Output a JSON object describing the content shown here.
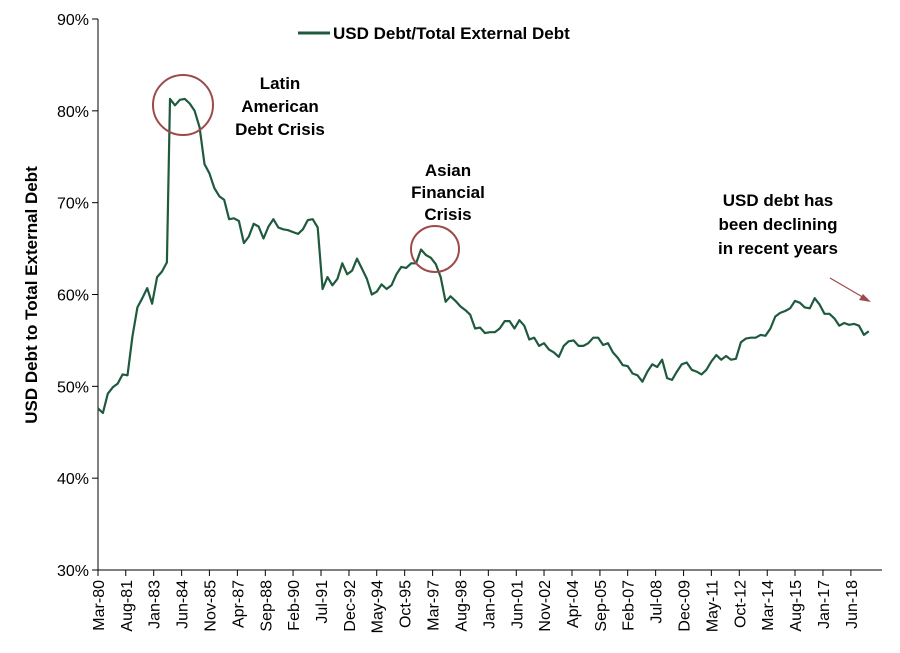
{
  "chart_data": {
    "type": "line",
    "title": "",
    "ylabel": "USD Debt to Total External Debt",
    "xlabel": "",
    "ylim": [
      30,
      90
    ],
    "y_ticks": [
      30,
      40,
      50,
      60,
      70,
      80,
      90
    ],
    "y_tick_labels": [
      "30%",
      "40%",
      "50%",
      "60%",
      "70%",
      "80%",
      "90%"
    ],
    "x_range": [
      1980.17,
      2020.0
    ],
    "x_ticks": [
      {
        "label": "Mar-80",
        "x": 1980.17
      },
      {
        "label": "Aug-81",
        "x": 1981.58
      },
      {
        "label": "Jan-83",
        "x": 1983.0
      },
      {
        "label": "Jun-84",
        "x": 1984.42
      },
      {
        "label": "Nov-85",
        "x": 1985.83
      },
      {
        "label": "Apr-87",
        "x": 1987.25
      },
      {
        "label": "Sep-88",
        "x": 1988.67
      },
      {
        "label": "Feb-90",
        "x": 1990.08
      },
      {
        "label": "Jul-91",
        "x": 1991.5
      },
      {
        "label": "Dec-92",
        "x": 1992.92
      },
      {
        "label": "May-94",
        "x": 1994.33
      },
      {
        "label": "Oct-95",
        "x": 1995.75
      },
      {
        "label": "Mar-97",
        "x": 1997.17
      },
      {
        "label": "Aug-98",
        "x": 1998.58
      },
      {
        "label": "Jan-00",
        "x": 2000.0
      },
      {
        "label": "Jun-01",
        "x": 2001.42
      },
      {
        "label": "Nov-02",
        "x": 2002.83
      },
      {
        "label": "Apr-04",
        "x": 2004.25
      },
      {
        "label": "Sep-05",
        "x": 2005.67
      },
      {
        "label": "Feb-07",
        "x": 2007.08
      },
      {
        "label": "Jul-08",
        "x": 2008.5
      },
      {
        "label": "Dec-09",
        "x": 2009.92
      },
      {
        "label": "May-11",
        "x": 2011.33
      },
      {
        "label": "Oct-12",
        "x": 2012.75
      },
      {
        "label": "Mar-14",
        "x": 2014.17
      },
      {
        "label": "Aug-15",
        "x": 2015.58
      },
      {
        "label": "Jan-17",
        "x": 2017.0
      },
      {
        "label": "Jun-18",
        "x": 2018.42
      }
    ],
    "grid": false,
    "legend_position": "top-center",
    "series": [
      {
        "name": "USD Debt/Total External Debt",
        "color": "#1f5a3e",
        "points": [
          [
            1980.17,
            47.6
          ],
          [
            1980.42,
            47.1
          ],
          [
            1980.67,
            49.2
          ],
          [
            1980.92,
            49.9
          ],
          [
            1981.17,
            50.3
          ],
          [
            1981.42,
            51.3
          ],
          [
            1981.67,
            51.2
          ],
          [
            1981.92,
            55.4
          ],
          [
            1982.17,
            58.6
          ],
          [
            1982.42,
            59.6
          ],
          [
            1982.67,
            60.7
          ],
          [
            1982.92,
            59.0
          ],
          [
            1983.17,
            61.9
          ],
          [
            1983.42,
            62.5
          ],
          [
            1983.67,
            63.5
          ],
          [
            1983.83,
            81.3
          ],
          [
            1984.08,
            80.6
          ],
          [
            1984.33,
            81.2
          ],
          [
            1984.58,
            81.3
          ],
          [
            1984.83,
            80.8
          ],
          [
            1985.08,
            80.0
          ],
          [
            1985.33,
            78.2
          ],
          [
            1985.58,
            74.2
          ],
          [
            1985.83,
            73.2
          ],
          [
            1986.08,
            71.6
          ],
          [
            1986.33,
            70.7
          ],
          [
            1986.58,
            70.3
          ],
          [
            1986.83,
            68.2
          ],
          [
            1987.08,
            68.3
          ],
          [
            1987.33,
            68.0
          ],
          [
            1987.58,
            65.6
          ],
          [
            1987.83,
            66.3
          ],
          [
            1988.08,
            67.7
          ],
          [
            1988.33,
            67.4
          ],
          [
            1988.58,
            66.1
          ],
          [
            1988.83,
            67.4
          ],
          [
            1989.08,
            68.2
          ],
          [
            1989.33,
            67.3
          ],
          [
            1989.58,
            67.1
          ],
          [
            1989.83,
            67.0
          ],
          [
            1990.08,
            66.8
          ],
          [
            1990.33,
            66.6
          ],
          [
            1990.58,
            67.1
          ],
          [
            1990.83,
            68.1
          ],
          [
            1991.08,
            68.2
          ],
          [
            1991.33,
            67.3
          ],
          [
            1991.58,
            60.6
          ],
          [
            1991.83,
            61.9
          ],
          [
            1992.08,
            61.0
          ],
          [
            1992.33,
            61.7
          ],
          [
            1992.58,
            63.4
          ],
          [
            1992.83,
            62.2
          ],
          [
            1993.08,
            62.6
          ],
          [
            1993.33,
            63.9
          ],
          [
            1993.58,
            62.8
          ],
          [
            1993.83,
            61.7
          ],
          [
            1994.08,
            60.0
          ],
          [
            1994.33,
            60.3
          ],
          [
            1994.58,
            61.1
          ],
          [
            1994.83,
            60.6
          ],
          [
            1995.08,
            61.0
          ],
          [
            1995.33,
            62.2
          ],
          [
            1995.58,
            63.0
          ],
          [
            1995.83,
            62.9
          ],
          [
            1996.08,
            63.4
          ],
          [
            1996.33,
            63.4
          ],
          [
            1996.58,
            64.9
          ],
          [
            1996.83,
            64.3
          ],
          [
            1997.08,
            64.0
          ],
          [
            1997.33,
            63.3
          ],
          [
            1997.58,
            61.9
          ],
          [
            1997.83,
            59.2
          ],
          [
            1998.08,
            59.8
          ],
          [
            1998.33,
            59.3
          ],
          [
            1998.58,
            58.7
          ],
          [
            1998.83,
            58.3
          ],
          [
            1999.08,
            57.8
          ],
          [
            1999.33,
            56.3
          ],
          [
            1999.58,
            56.4
          ],
          [
            1999.83,
            55.8
          ],
          [
            2000.08,
            55.9
          ],
          [
            2000.33,
            55.9
          ],
          [
            2000.58,
            56.3
          ],
          [
            2000.83,
            57.1
          ],
          [
            2001.08,
            57.1
          ],
          [
            2001.33,
            56.3
          ],
          [
            2001.58,
            57.2
          ],
          [
            2001.83,
            56.6
          ],
          [
            2002.08,
            55.1
          ],
          [
            2002.33,
            55.3
          ],
          [
            2002.58,
            54.4
          ],
          [
            2002.83,
            54.7
          ],
          [
            2003.08,
            54.0
          ],
          [
            2003.33,
            53.7
          ],
          [
            2003.58,
            53.2
          ],
          [
            2003.83,
            54.4
          ],
          [
            2004.08,
            54.9
          ],
          [
            2004.33,
            55.0
          ],
          [
            2004.58,
            54.4
          ],
          [
            2004.83,
            54.4
          ],
          [
            2005.08,
            54.7
          ],
          [
            2005.33,
            55.3
          ],
          [
            2005.58,
            55.3
          ],
          [
            2005.83,
            54.5
          ],
          [
            2006.08,
            54.7
          ],
          [
            2006.33,
            53.7
          ],
          [
            2006.58,
            53.1
          ],
          [
            2006.83,
            52.3
          ],
          [
            2007.08,
            52.2
          ],
          [
            2007.33,
            51.4
          ],
          [
            2007.58,
            51.2
          ],
          [
            2007.83,
            50.5
          ],
          [
            2008.08,
            51.6
          ],
          [
            2008.33,
            52.4
          ],
          [
            2008.58,
            52.1
          ],
          [
            2008.83,
            52.9
          ],
          [
            2009.08,
            50.9
          ],
          [
            2009.33,
            50.7
          ],
          [
            2009.58,
            51.6
          ],
          [
            2009.83,
            52.4
          ],
          [
            2010.08,
            52.6
          ],
          [
            2010.33,
            51.8
          ],
          [
            2010.58,
            51.6
          ],
          [
            2010.83,
            51.3
          ],
          [
            2011.08,
            51.8
          ],
          [
            2011.33,
            52.7
          ],
          [
            2011.58,
            53.4
          ],
          [
            2011.83,
            52.9
          ],
          [
            2012.08,
            53.3
          ],
          [
            2012.33,
            52.9
          ],
          [
            2012.58,
            53.0
          ],
          [
            2012.83,
            54.8
          ],
          [
            2013.08,
            55.2
          ],
          [
            2013.33,
            55.3
          ],
          [
            2013.58,
            55.3
          ],
          [
            2013.83,
            55.6
          ],
          [
            2014.08,
            55.5
          ],
          [
            2014.33,
            56.3
          ],
          [
            2014.58,
            57.6
          ],
          [
            2014.83,
            58.0
          ],
          [
            2015.08,
            58.2
          ],
          [
            2015.33,
            58.5
          ],
          [
            2015.58,
            59.3
          ],
          [
            2015.83,
            59.1
          ],
          [
            2016.08,
            58.6
          ],
          [
            2016.33,
            58.5
          ],
          [
            2016.58,
            59.6
          ],
          [
            2016.83,
            58.9
          ],
          [
            2017.08,
            57.9
          ],
          [
            2017.33,
            57.9
          ],
          [
            2017.58,
            57.4
          ],
          [
            2017.83,
            56.6
          ],
          [
            2018.08,
            56.9
          ],
          [
            2018.33,
            56.7
          ],
          [
            2018.58,
            56.8
          ],
          [
            2018.83,
            56.6
          ],
          [
            2019.08,
            55.6
          ],
          [
            2019.33,
            56.0
          ]
        ]
      }
    ],
    "annotations": [
      {
        "lines": [
          "Latin",
          "American",
          "Debt Crisis"
        ]
      },
      {
        "lines": [
          "Asian",
          "Financial",
          "Crisis"
        ]
      },
      {
        "lines": [
          "USD debt has",
          "been declining",
          "in recent years"
        ]
      }
    ],
    "circle_color": "#9e4a4a",
    "arrow_color": "#9e4a4a"
  }
}
